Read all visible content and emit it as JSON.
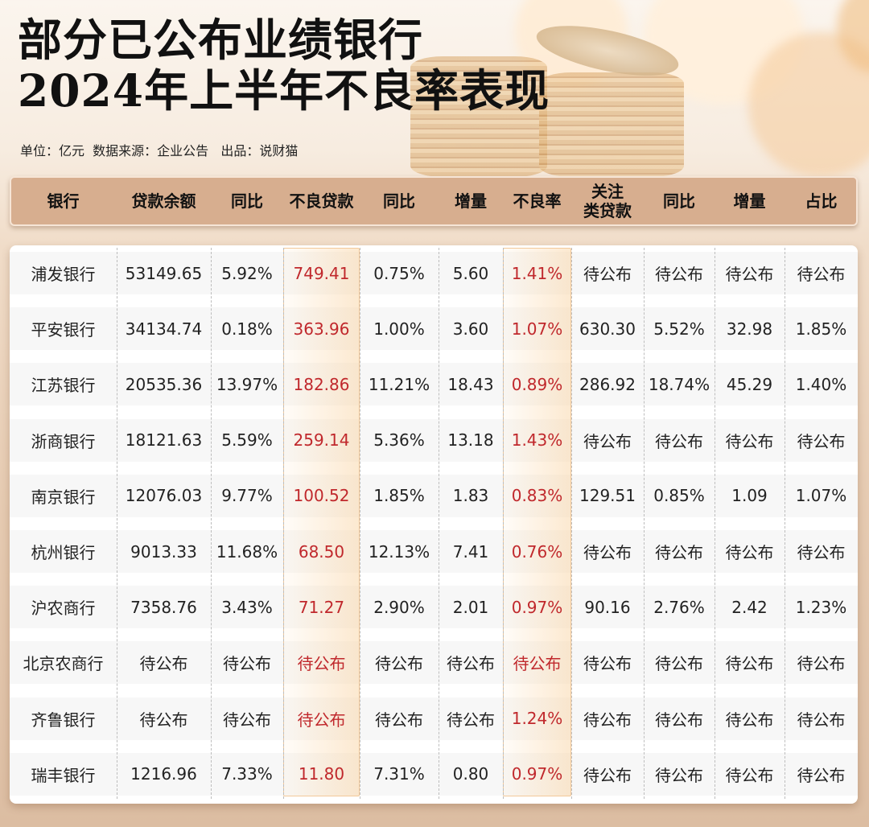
{
  "title": {
    "line1": "部分已公布业绩银行",
    "line2": "2024年上半年不良率表现"
  },
  "subtitle": "单位：亿元  数据来源：企业公告   出品：说财猫",
  "colors": {
    "header_bg": "#d7ae8f",
    "highlight_text": "#c0282c",
    "highlight_col_border": "#f3c99a"
  },
  "headers": [
    "银行",
    "贷款余额",
    "同比",
    "不良贷款",
    "同比",
    "增量",
    "不良率",
    "关注\n类贷款",
    "同比",
    "增量",
    "占比"
  ],
  "header_attention_line1": "关注",
  "header_attention_line2": "类贷款",
  "rows": [
    [
      "浦发银行",
      "53149.65",
      "5.92%",
      "749.41",
      "0.75%",
      "5.60",
      "1.41%",
      "待公布",
      "待公布",
      "待公布",
      "待公布"
    ],
    [
      "平安银行",
      "34134.74",
      "0.18%",
      "363.96",
      "1.00%",
      "3.60",
      "1.07%",
      "630.30",
      "5.52%",
      "32.98",
      "1.85%"
    ],
    [
      "江苏银行",
      "20535.36",
      "13.97%",
      "182.86",
      "11.21%",
      "18.43",
      "0.89%",
      "286.92",
      "18.74%",
      "45.29",
      "1.40%"
    ],
    [
      "浙商银行",
      "18121.63",
      "5.59%",
      "259.14",
      "5.36%",
      "13.18",
      "1.43%",
      "待公布",
      "待公布",
      "待公布",
      "待公布"
    ],
    [
      "南京银行",
      "12076.03",
      "9.77%",
      "100.52",
      "1.85%",
      "1.83",
      "0.83%",
      "129.51",
      "0.85%",
      "1.09",
      "1.07%"
    ],
    [
      "杭州银行",
      "9013.33",
      "11.68%",
      "68.50",
      "12.13%",
      "7.41",
      "0.76%",
      "待公布",
      "待公布",
      "待公布",
      "待公布"
    ],
    [
      "沪农商行",
      "7358.76",
      "3.43%",
      "71.27",
      "2.90%",
      "2.01",
      "0.97%",
      "90.16",
      "2.76%",
      "2.42",
      "1.23%"
    ],
    [
      "北京农商行",
      "待公布",
      "待公布",
      "待公布",
      "待公布",
      "待公布",
      "待公布",
      "待公布",
      "待公布",
      "待公布",
      "待公布"
    ],
    [
      "齐鲁银行",
      "待公布",
      "待公布",
      "待公布",
      "待公布",
      "待公布",
      "1.24%",
      "待公布",
      "待公布",
      "待公布",
      "待公布"
    ],
    [
      "瑞丰银行",
      "1216.96",
      "7.33%",
      "11.80",
      "7.31%",
      "0.80",
      "0.97%",
      "待公布",
      "待公布",
      "待公布",
      "待公布"
    ]
  ]
}
